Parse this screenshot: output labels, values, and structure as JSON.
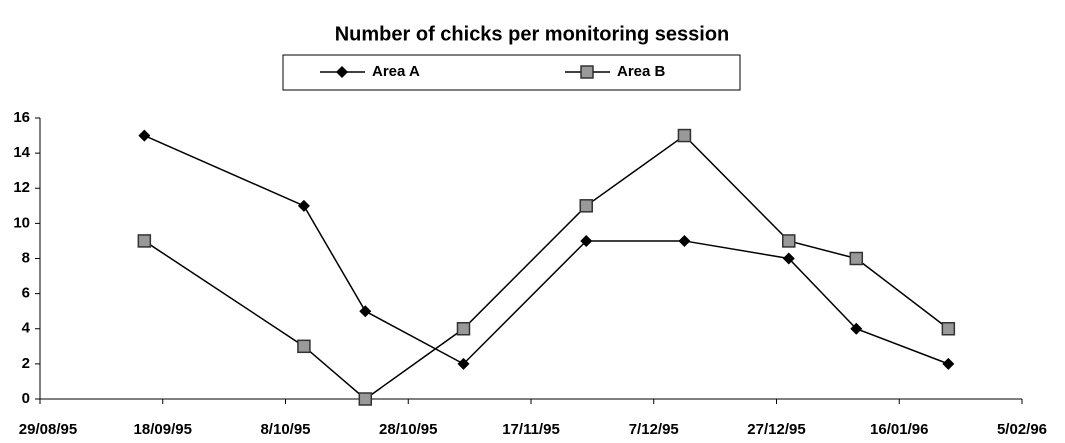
{
  "chart_data": {
    "type": "line",
    "title": "Number of chicks per monitoring session",
    "x": [
      "1995-09-15",
      "1995-10-11",
      "1995-10-21",
      "1995-11-06",
      "1995-11-26",
      "1995-12-12",
      "1995-12-29",
      "1996-01-09",
      "1996-01-24"
    ],
    "series": [
      {
        "name": "Area A",
        "color": "#000000",
        "marker": "diamond",
        "values": [
          15,
          11,
          5,
          2,
          9,
          9,
          8,
          4,
          2
        ]
      },
      {
        "name": "Area B",
        "color": "#999999",
        "marker": "square",
        "values": [
          9,
          3,
          0,
          4,
          11,
          15,
          9,
          8,
          4
        ]
      }
    ],
    "xlim": [
      "1995-08-29",
      "1996-02-05"
    ],
    "xticks": [
      {
        "value": "1995-08-29",
        "label": "29/08/95"
      },
      {
        "value": "1995-09-18",
        "label": "18/09/95"
      },
      {
        "value": "1995-10-08",
        "label": "8/10/95"
      },
      {
        "value": "1995-10-28",
        "label": "28/10/95"
      },
      {
        "value": "1995-11-17",
        "label": "17/11/95"
      },
      {
        "value": "1995-12-07",
        "label": "7/12/95"
      },
      {
        "value": "1995-12-27",
        "label": "27/12/95"
      },
      {
        "value": "1996-01-16",
        "label": "16/01/96"
      },
      {
        "value": "1996-02-05",
        "label": "5/02/96"
      }
    ],
    "ylim": [
      0,
      16
    ],
    "yticks": [
      0,
      2,
      4,
      6,
      8,
      10,
      12,
      14,
      16
    ],
    "grid": false,
    "legend": "top"
  }
}
